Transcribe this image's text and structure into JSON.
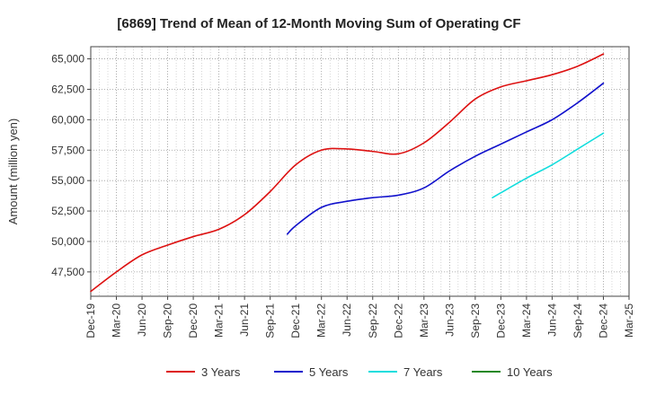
{
  "chart_data": {
    "type": "line",
    "title": "[6869]  Trend of Mean of 12-Month Moving Sum of Operating CF",
    "xlabel": "",
    "ylabel": "Amount (million yen)",
    "ylim": [
      45500,
      66000
    ],
    "yticks": [
      47500,
      50000,
      52500,
      55000,
      57500,
      60000,
      62500,
      65000
    ],
    "ytick_labels": [
      "47,500",
      "50,000",
      "52,500",
      "55,000",
      "57,500",
      "60,000",
      "62,500",
      "65,000"
    ],
    "x_categories": [
      "Dec-19",
      "Mar-20",
      "Jun-20",
      "Sep-20",
      "Dec-20",
      "Mar-21",
      "Jun-21",
      "Sep-21",
      "Dec-21",
      "Mar-22",
      "Jun-22",
      "Sep-22",
      "Dec-22",
      "Mar-23",
      "Jun-23",
      "Sep-23",
      "Dec-23",
      "Mar-24",
      "Jun-24",
      "Sep-24",
      "Dec-24",
      "Mar-25"
    ],
    "grid": true,
    "legend_position": "bottom",
    "series": [
      {
        "name": "3 Years",
        "color": "#dd1111",
        "points": [
          [
            0,
            45900
          ],
          [
            1,
            47500
          ],
          [
            2,
            48900
          ],
          [
            3,
            49700
          ],
          [
            4,
            50400
          ],
          [
            5,
            51000
          ],
          [
            6,
            52200
          ],
          [
            7,
            54100
          ],
          [
            8,
            56300
          ],
          [
            9,
            57500
          ],
          [
            10,
            57600
          ],
          [
            11,
            57400
          ],
          [
            12,
            57200
          ],
          [
            13,
            58100
          ],
          [
            14,
            59800
          ],
          [
            15,
            61700
          ],
          [
            16,
            62700
          ],
          [
            17,
            63200
          ],
          [
            18,
            63700
          ],
          [
            19,
            64400
          ],
          [
            20,
            65400
          ]
        ]
      },
      {
        "name": "5 Years",
        "color": "#1111cc",
        "points": [
          [
            7.67,
            50600
          ],
          [
            8,
            51300
          ],
          [
            9,
            52800
          ],
          [
            10,
            53300
          ],
          [
            11,
            53600
          ],
          [
            12,
            53800
          ],
          [
            13,
            54400
          ],
          [
            14,
            55800
          ],
          [
            15,
            57000
          ],
          [
            16,
            58000
          ],
          [
            17,
            59000
          ],
          [
            18,
            60000
          ],
          [
            19,
            61400
          ],
          [
            20,
            63000
          ]
        ]
      },
      {
        "name": "7 Years",
        "color": "#11dddd",
        "points": [
          [
            15.67,
            53600
          ],
          [
            16,
            54000
          ],
          [
            17,
            55200
          ],
          [
            18,
            56300
          ],
          [
            19,
            57600
          ],
          [
            20,
            58900
          ]
        ]
      },
      {
        "name": "10 Years",
        "color": "#228822",
        "points": []
      }
    ]
  }
}
